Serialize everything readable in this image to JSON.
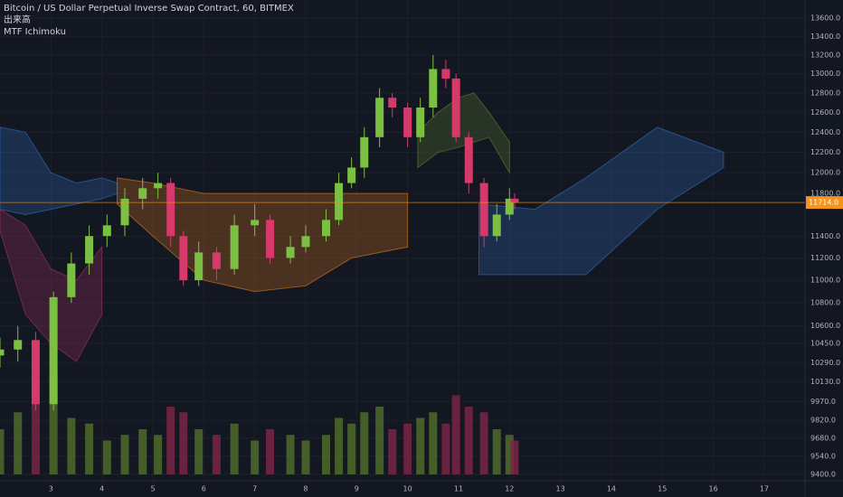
{
  "chart_data": {
    "type": "candlestick",
    "title": "Bitcoin / US Dollar Perpetual Inverse Swap Contract, 60, BITMEX",
    "volume_label": "出来高",
    "indicator_label": "MTF Ichimoku",
    "log_scale": true,
    "grid": true,
    "up_color": "#7bc043",
    "down_color": "#d63a6b",
    "volume_up_color": "#4f6b2a",
    "volume_down_color": "#7a2446",
    "xlim": [
      2,
      17.8
    ],
    "xticks": [
      3,
      4,
      5,
      6,
      7,
      8,
      9,
      10,
      11,
      12,
      13,
      14,
      15,
      16,
      17
    ],
    "ylim": [
      9400,
      13600
    ],
    "yticks": [
      {
        "value": 13600,
        "label": "13600.0"
      },
      {
        "value": 13400,
        "label": "13400.0"
      },
      {
        "value": 13200,
        "label": "13200.0"
      },
      {
        "value": 13000,
        "label": "13000.0"
      },
      {
        "value": 12800,
        "label": "12800.0"
      },
      {
        "value": 12600,
        "label": "12600.0"
      },
      {
        "value": 12400,
        "label": "12400.0"
      },
      {
        "value": 12200,
        "label": "12200.0"
      },
      {
        "value": 12000,
        "label": "12000.0"
      },
      {
        "value": 11800,
        "label": "11800.0"
      },
      {
        "value": 11400,
        "label": "11400.0"
      },
      {
        "value": 11200,
        "label": "11200.0"
      },
      {
        "value": 11000,
        "label": "11000.0"
      },
      {
        "value": 10800,
        "label": "10800.0"
      },
      {
        "value": 10600,
        "label": "10600.0"
      },
      {
        "value": 10450,
        "label": "10450.0"
      },
      {
        "value": 10290,
        "label": "10290.0"
      },
      {
        "value": 10130,
        "label": "10130.0"
      },
      {
        "value": 9970,
        "label": "9970.0"
      },
      {
        "value": 9820,
        "label": "9820.0"
      },
      {
        "value": 9680,
        "label": "9680.0"
      },
      {
        "value": 9540,
        "label": "9540.0"
      },
      {
        "value": 9400,
        "label": "9400.0"
      }
    ],
    "last_price": {
      "value": 11714,
      "label": "11714.0"
    },
    "last_price_color": "#f7931a",
    "x": [
      2.0,
      2.35,
      2.7,
      3.05,
      3.4,
      3.75,
      4.1,
      4.45,
      4.8,
      5.1,
      5.35,
      5.6,
      5.9,
      6.25,
      6.6,
      7.0,
      7.3,
      7.7,
      8.0,
      8.4,
      8.65,
      8.9,
      9.15,
      9.45,
      9.7,
      10.0,
      10.25,
      10.5,
      10.75,
      10.95,
      11.2,
      11.5,
      11.75,
      12.0,
      12.1
    ],
    "open": [
      10350,
      10400,
      10480,
      9950,
      10850,
      11150,
      11400,
      11500,
      11750,
      11850,
      11900,
      11400,
      11000,
      11250,
      11100,
      11500,
      11550,
      11200,
      11300,
      11400,
      11550,
      11900,
      12050,
      12350,
      12750,
      12650,
      12350,
      12650,
      13050,
      12950,
      12350,
      11900,
      11400,
      11600,
      11750
    ],
    "high": [
      10500,
      10600,
      10550,
      10900,
      11250,
      11500,
      11600,
      11850,
      11950,
      12000,
      11950,
      11450,
      11350,
      11300,
      11600,
      11700,
      11600,
      11400,
      11500,
      11650,
      12000,
      12150,
      12450,
      12850,
      12800,
      12700,
      12750,
      13200,
      13150,
      13000,
      12400,
      11950,
      11700,
      11850,
      11800
    ],
    "low": [
      10250,
      10300,
      9900,
      9900,
      10800,
      11050,
      11300,
      11400,
      11650,
      11750,
      11300,
      10950,
      10950,
      11000,
      11050,
      11400,
      11150,
      11150,
      11250,
      11350,
      11500,
      11850,
      11950,
      12250,
      12550,
      12250,
      12300,
      12550,
      12850,
      12300,
      11800,
      11300,
      11350,
      11550,
      11650
    ],
    "close": [
      10400,
      10480,
      9950,
      10850,
      11150,
      11400,
      11500,
      11750,
      11850,
      11900,
      11400,
      11000,
      11250,
      11100,
      11500,
      11550,
      11200,
      11300,
      11400,
      11550,
      11900,
      12050,
      12350,
      12750,
      12650,
      12350,
      12650,
      13050,
      12950,
      12350,
      11900,
      11400,
      11600,
      11750,
      11714
    ],
    "volume": [
      40,
      55,
      80,
      90,
      50,
      45,
      30,
      35,
      40,
      35,
      60,
      55,
      40,
      35,
      45,
      30,
      40,
      35,
      30,
      35,
      50,
      45,
      55,
      60,
      40,
      45,
      50,
      55,
      45,
      70,
      60,
      55,
      40,
      35,
      30
    ],
    "vlim": [
      0,
      100
    ],
    "clouds": [
      {
        "color": "#2a5d9f",
        "x": [
          2.0,
          2.5,
          3.0,
          3.5,
          4.0,
          4.3
        ],
        "upper": [
          12450,
          12400,
          12000,
          11900,
          11950,
          11900
        ],
        "lower": [
          11650,
          11600,
          11650,
          11700,
          11750,
          11800
        ]
      },
      {
        "color": "#8a2a55",
        "x": [
          2.0,
          2.5,
          3.0,
          3.5,
          4.0
        ],
        "upper": [
          11650,
          11500,
          11100,
          11000,
          11300
        ],
        "lower": [
          11450,
          10700,
          10450,
          10300,
          10700
        ]
      },
      {
        "color": "#b5651d",
        "x": [
          4.3,
          5.0,
          6.0,
          7.0,
          8.0,
          8.9,
          10.0
        ],
        "upper": [
          11950,
          11900,
          11800,
          11800,
          11800,
          11800,
          11800
        ],
        "lower": [
          11700,
          11400,
          11000,
          10900,
          10950,
          11200,
          11300
        ]
      },
      {
        "color": "#4f6b2a",
        "x": [
          10.2,
          10.6,
          11.0,
          11.3,
          11.6,
          12.0
        ],
        "upper": [
          12400,
          12600,
          12750,
          12800,
          12600,
          12300
        ],
        "lower": [
          12050,
          12200,
          12250,
          12300,
          12350,
          12000
        ]
      },
      {
        "color": "#2a5d9f",
        "x": [
          11.4,
          12.5,
          13.5,
          14.9,
          16.2
        ],
        "upper": [
          11700,
          11650,
          11950,
          12450,
          12200
        ],
        "lower": [
          11050,
          11050,
          11050,
          11650,
          12050
        ]
      }
    ]
  }
}
